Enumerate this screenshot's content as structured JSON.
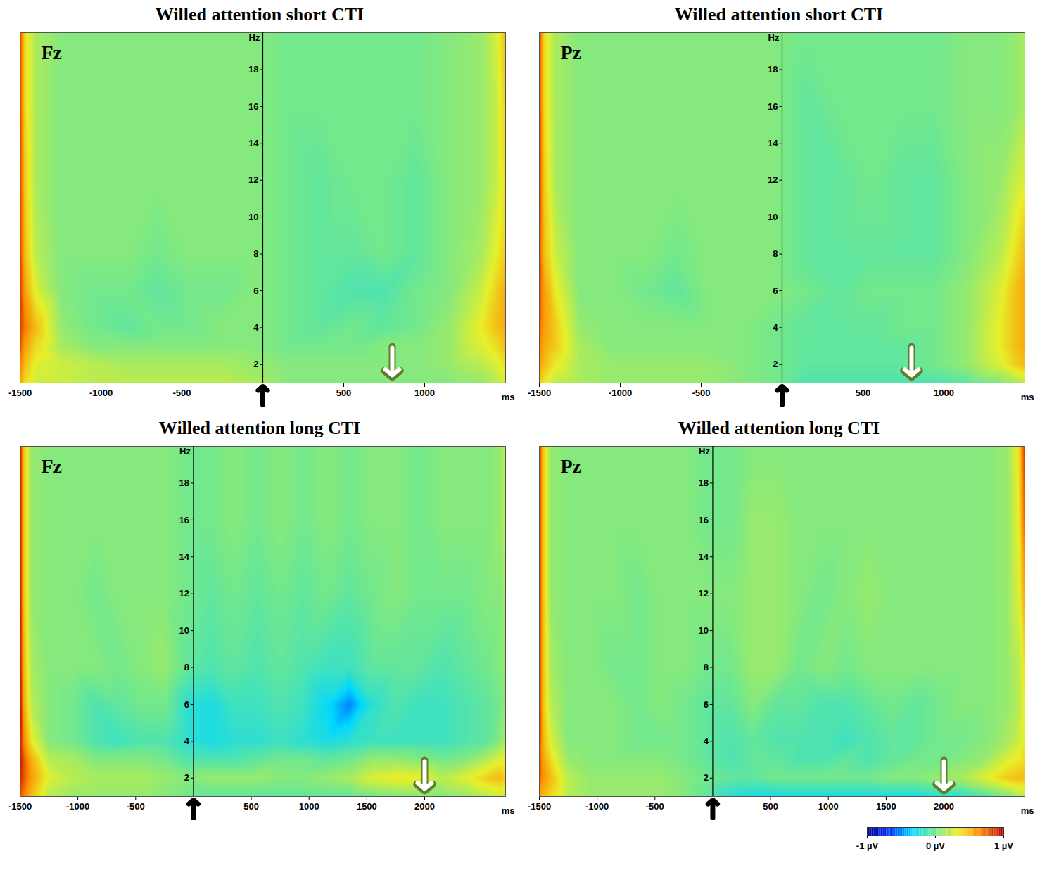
{
  "chart_data": [
    {
      "type": "heatmap",
      "title": "Willed attention short CTI",
      "panel_label": "Fz",
      "xlabel": "ms",
      "ylabel": "Hz",
      "xlim": [
        -1500,
        1500
      ],
      "xticks": [
        -1500,
        -1000,
        -500,
        500,
        1000
      ],
      "ylim": [
        1,
        20
      ],
      "yticks": [
        2,
        4,
        6,
        8,
        10,
        12,
        14,
        16,
        18
      ],
      "arrows": [
        {
          "x": 0,
          "color": "black"
        },
        {
          "x": 800,
          "color": "white"
        }
      ],
      "x": [
        -1500,
        -1470,
        -1400,
        -1250,
        -1050,
        -850,
        -650,
        -450,
        -250,
        -50,
        150,
        350,
        550,
        750,
        950,
        1150,
        1350,
        1450,
        1500
      ],
      "y": [
        1,
        2,
        3,
        4,
        6,
        8,
        12,
        16,
        20
      ],
      "z": [
        [
          0.6,
          0.4,
          0.25,
          0.25,
          0.2,
          0.2,
          0.2,
          0.2,
          0.2,
          0.15,
          0.05,
          0.05,
          0.05,
          0.05,
          0.05,
          0.05,
          0.1,
          0.2,
          0.3
        ],
        [
          0.7,
          0.5,
          0.3,
          0.25,
          0.2,
          0.15,
          0.15,
          0.15,
          0.15,
          0.1,
          0.05,
          0.05,
          0.05,
          0.05,
          0.05,
          0.1,
          0.2,
          0.3,
          0.4
        ],
        [
          0.8,
          0.6,
          0.4,
          0.15,
          0.05,
          0.05,
          0.05,
          0.05,
          0.05,
          0.05,
          0,
          0,
          0,
          0.05,
          0.05,
          0.1,
          0.3,
          0.4,
          0.5
        ],
        [
          0.85,
          0.7,
          0.5,
          0.1,
          0,
          -0.05,
          0,
          0,
          0.05,
          0.05,
          0,
          -0.05,
          0,
          -0.05,
          0,
          0.1,
          0.35,
          0.5,
          0.55
        ],
        [
          0.85,
          0.6,
          0.3,
          0.05,
          0,
          0,
          -0.05,
          0,
          0,
          0.05,
          0,
          -0.05,
          -0.1,
          -0.1,
          0,
          0.05,
          0.25,
          0.45,
          0.55
        ],
        [
          0.85,
          0.5,
          0.2,
          0.05,
          0.05,
          0.05,
          0,
          0.05,
          0.05,
          0.05,
          0,
          -0.05,
          -0.05,
          0,
          -0.05,
          0.05,
          0.15,
          0.35,
          0.45
        ],
        [
          0.85,
          0.45,
          0.15,
          0.05,
          0.05,
          0.05,
          0.05,
          0.05,
          0.05,
          0.05,
          0,
          -0.05,
          0,
          0,
          -0.05,
          0.05,
          0.1,
          0.25,
          0.4
        ],
        [
          0.85,
          0.4,
          0.15,
          0.05,
          0.05,
          0.05,
          0.05,
          0.05,
          0.05,
          0.05,
          0,
          0,
          0,
          0,
          0,
          0.05,
          0.1,
          0.25,
          0.45
        ],
        [
          0.85,
          0.4,
          0.15,
          0.05,
          0.05,
          0.05,
          0.05,
          0.05,
          0.05,
          0.05,
          0,
          0,
          0,
          0,
          0,
          0.05,
          0.1,
          0.3,
          0.5
        ]
      ]
    },
    {
      "type": "heatmap",
      "title": "Willed attention short CTI",
      "panel_label": "Pz",
      "xlabel": "ms",
      "ylabel": "Hz",
      "xlim": [
        -1500,
        1500
      ],
      "xticks": [
        -1500,
        -1000,
        -500,
        500,
        1000
      ],
      "ylim": [
        1,
        20
      ],
      "yticks": [
        2,
        4,
        6,
        8,
        10,
        12,
        14,
        16,
        18
      ],
      "arrows": [
        {
          "x": 0,
          "color": "black"
        },
        {
          "x": 800,
          "color": "white"
        }
      ],
      "x": [
        -1500,
        -1470,
        -1400,
        -1250,
        -1050,
        -850,
        -650,
        -450,
        -250,
        -50,
        150,
        350,
        550,
        750,
        950,
        1150,
        1350,
        1450,
        1500
      ],
      "y": [
        1,
        2,
        3,
        4,
        6,
        8,
        12,
        16,
        20
      ],
      "z": [
        [
          0.5,
          0.35,
          0.2,
          0.15,
          0.1,
          0.1,
          0.1,
          0.1,
          0.05,
          0,
          -0.1,
          -0.1,
          -0.1,
          -0.1,
          -0.1,
          -0.05,
          0.05,
          0.15,
          0.2
        ],
        [
          0.6,
          0.5,
          0.35,
          0.15,
          0.1,
          0.1,
          0.1,
          0.1,
          0.05,
          0,
          -0.05,
          -0.05,
          -0.05,
          -0.05,
          0,
          0.1,
          0.3,
          0.45,
          0.5
        ],
        [
          0.7,
          0.55,
          0.45,
          0.15,
          0.05,
          0.05,
          0.05,
          0.05,
          0.05,
          0,
          -0.05,
          -0.05,
          -0.05,
          -0.05,
          0,
          0.1,
          0.35,
          0.5,
          0.55
        ],
        [
          0.75,
          0.6,
          0.45,
          0.1,
          0.05,
          0.05,
          0.05,
          0.05,
          0.05,
          0,
          -0.05,
          -0.05,
          -0.05,
          0,
          0,
          0.1,
          0.35,
          0.5,
          0.55
        ],
        [
          0.8,
          0.6,
          0.35,
          0.05,
          0.05,
          0,
          -0.05,
          0.05,
          0.05,
          0.05,
          0,
          -0.05,
          0,
          0,
          0,
          0.1,
          0.3,
          0.5,
          0.55
        ],
        [
          0.8,
          0.5,
          0.25,
          0.05,
          0.05,
          0.05,
          0,
          0.05,
          0.05,
          0.05,
          -0.05,
          -0.05,
          -0.05,
          -0.05,
          -0.05,
          0.05,
          0.2,
          0.4,
          0.5
        ],
        [
          0.85,
          0.45,
          0.15,
          0.05,
          0.05,
          0.05,
          0.05,
          0.05,
          0.05,
          0.05,
          -0.05,
          -0.05,
          0,
          -0.05,
          -0.05,
          0.05,
          0.1,
          0.25,
          0.3
        ],
        [
          0.85,
          0.4,
          0.15,
          0.05,
          0.05,
          0.05,
          0.05,
          0.05,
          0.05,
          0.05,
          -0.05,
          0,
          0,
          0,
          0,
          0.05,
          0.05,
          0.1,
          0.15
        ],
        [
          0.85,
          0.4,
          0.15,
          0.05,
          0.05,
          0.05,
          0.05,
          0.05,
          0.05,
          0.05,
          0,
          0,
          0,
          0,
          0,
          0.05,
          0.05,
          0.1,
          0.15
        ]
      ]
    },
    {
      "type": "heatmap",
      "title": "Willed attention long CTI",
      "panel_label": "Fz",
      "xlabel": "ms",
      "ylabel": "Hz",
      "xlim": [
        -1500,
        2700
      ],
      "xticks": [
        -1500,
        -1000,
        -500,
        500,
        1000,
        1500,
        2000
      ],
      "ylim": [
        1,
        20
      ],
      "yticks": [
        2,
        4,
        6,
        8,
        10,
        12,
        14,
        16,
        18
      ],
      "arrows": [
        {
          "x": 0,
          "color": "black"
        },
        {
          "x": 2000,
          "color": "white"
        }
      ],
      "x": [
        -1500,
        -1470,
        -1400,
        -1250,
        -1050,
        -850,
        -650,
        -450,
        -250,
        -50,
        150,
        350,
        550,
        750,
        950,
        1150,
        1350,
        1550,
        1750,
        1950,
        2150,
        2350,
        2550,
        2650,
        2700
      ],
      "y": [
        1,
        2,
        3,
        4,
        6,
        8,
        12,
        16,
        20
      ],
      "z": [
        [
          0.8,
          0.7,
          0.5,
          0.2,
          0.1,
          0.1,
          0.1,
          0.1,
          0.05,
          0,
          -0.05,
          -0.05,
          -0.05,
          -0.05,
          -0.05,
          -0.05,
          -0.05,
          0,
          0.05,
          0.05,
          0.05,
          0.1,
          0.2,
          0.25,
          0.25
        ],
        [
          0.9,
          0.8,
          0.6,
          0.3,
          0.2,
          0.15,
          0.15,
          0.15,
          0.1,
          0.05,
          0.1,
          0.1,
          0.1,
          0.05,
          0.05,
          0.1,
          0.15,
          0.3,
          0.35,
          0.35,
          0.2,
          0.3,
          0.45,
          0.5,
          0.45
        ],
        [
          0.95,
          0.8,
          0.55,
          0.2,
          0.15,
          0.05,
          0.05,
          0.05,
          0,
          -0.1,
          -0.1,
          -0.1,
          -0.05,
          0,
          0,
          -0.05,
          0,
          0.1,
          0.1,
          0.05,
          0,
          0.05,
          0.2,
          0.3,
          0.35
        ],
        [
          0.95,
          0.7,
          0.35,
          0.05,
          0,
          -0.1,
          -0.15,
          -0.1,
          -0.1,
          -0.2,
          -0.25,
          -0.2,
          -0.2,
          -0.15,
          -0.2,
          -0.25,
          -0.2,
          -0.15,
          -0.15,
          -0.15,
          -0.15,
          -0.1,
          -0.05,
          0.05,
          0.15
        ],
        [
          1,
          0.6,
          0.2,
          0.05,
          0,
          -0.1,
          -0.05,
          0,
          0,
          -0.2,
          -0.25,
          -0.15,
          -0.15,
          -0.1,
          -0.15,
          -0.3,
          -0.5,
          -0.2,
          -0.1,
          -0.15,
          -0.15,
          -0.1,
          -0.05,
          0,
          0.1
        ],
        [
          1,
          0.55,
          0.15,
          0.05,
          0.05,
          0.05,
          0,
          0.05,
          0.1,
          -0.05,
          -0.1,
          -0.05,
          -0.1,
          -0.05,
          -0.1,
          -0.15,
          -0.15,
          -0.05,
          -0.05,
          -0.05,
          -0.1,
          -0.05,
          0,
          0.05,
          0.1
        ],
        [
          1,
          0.5,
          0.1,
          0.05,
          0.05,
          0,
          0.05,
          0.05,
          0.05,
          0,
          -0.05,
          0,
          -0.05,
          0,
          -0.05,
          0,
          -0.05,
          0,
          0.05,
          0,
          0,
          0,
          0.05,
          0.05,
          0.15
        ],
        [
          1,
          0.5,
          0.1,
          0.05,
          0.05,
          0.05,
          0.05,
          0.05,
          0.05,
          0,
          0,
          0.05,
          0,
          0.05,
          0,
          0.05,
          0,
          0.05,
          0.05,
          0,
          0.05,
          0.05,
          0.05,
          0.1,
          0.2
        ],
        [
          1,
          0.5,
          0.1,
          0.05,
          0.05,
          0.05,
          0.05,
          0.05,
          0.05,
          0,
          0,
          0.05,
          0,
          0.05,
          0,
          0.05,
          0,
          0.05,
          0.05,
          0,
          0.05,
          0.05,
          0.05,
          0.1,
          0.2
        ]
      ]
    },
    {
      "type": "heatmap",
      "title": "Willed attention long CTI",
      "panel_label": "Pz",
      "xlabel": "ms",
      "ylabel": "Hz",
      "xlim": [
        -1500,
        2700
      ],
      "xticks": [
        -1500,
        -1000,
        -500,
        500,
        1000,
        1500,
        2000
      ],
      "ylim": [
        1,
        20
      ],
      "yticks": [
        2,
        4,
        6,
        8,
        10,
        12,
        14,
        16,
        18
      ],
      "arrows": [
        {
          "x": 0,
          "color": "black"
        },
        {
          "x": 2000,
          "color": "white"
        }
      ],
      "x": [
        -1500,
        -1470,
        -1400,
        -1250,
        -1050,
        -850,
        -650,
        -450,
        -250,
        -50,
        150,
        350,
        550,
        750,
        950,
        1150,
        1350,
        1550,
        1750,
        1950,
        2150,
        2350,
        2550,
        2650,
        2700
      ],
      "y": [
        1,
        2,
        3,
        4,
        6,
        8,
        12,
        16,
        20
      ],
      "z": [
        [
          0.6,
          0.5,
          0.4,
          0.2,
          0.1,
          0.1,
          0.1,
          0.1,
          0.05,
          -0.05,
          -0.2,
          -0.25,
          -0.25,
          -0.25,
          -0.25,
          -0.25,
          -0.25,
          -0.25,
          -0.25,
          -0.2,
          -0.2,
          -0.1,
          0.05,
          0.15,
          0.2
        ],
        [
          0.75,
          0.65,
          0.5,
          0.2,
          0.1,
          0.1,
          0.1,
          0.1,
          0.05,
          0,
          -0.05,
          -0.05,
          0,
          0,
          0,
          0,
          0,
          0.05,
          0.05,
          0.1,
          0.15,
          0.3,
          0.45,
          0.5,
          0.5
        ],
        [
          0.8,
          0.6,
          0.4,
          0.1,
          0.05,
          0.05,
          0.05,
          0.05,
          0,
          -0.05,
          -0.1,
          -0.05,
          -0.05,
          -0.1,
          -0.1,
          -0.05,
          -0.1,
          -0.05,
          0,
          0,
          0.05,
          0.1,
          0.3,
          0.35,
          0.4
        ],
        [
          0.85,
          0.55,
          0.3,
          0.05,
          0.05,
          0.05,
          0,
          0,
          0,
          -0.05,
          -0.1,
          -0.05,
          -0.1,
          -0.1,
          -0.1,
          -0.15,
          -0.1,
          -0.05,
          -0.05,
          0,
          0,
          0.05,
          0.15,
          0.25,
          0.35
        ],
        [
          0.9,
          0.5,
          0.2,
          0.05,
          0.05,
          0.05,
          0,
          0.05,
          0,
          -0.05,
          -0.05,
          0.05,
          -0.05,
          -0.05,
          -0.1,
          -0.1,
          -0.05,
          0,
          -0.05,
          0,
          0.05,
          0.05,
          0.1,
          0.2,
          0.35
        ],
        [
          0.9,
          0.5,
          0.15,
          0.05,
          0.05,
          0,
          0,
          0.05,
          0.05,
          0,
          0,
          0.1,
          0.1,
          0,
          0.05,
          0,
          0.05,
          0.05,
          0.05,
          0.05,
          0.05,
          0.05,
          0.1,
          0.2,
          0.4
        ],
        [
          0.9,
          0.5,
          0.1,
          0.05,
          0.05,
          0.05,
          0,
          0.05,
          0.05,
          0.05,
          0.05,
          0.1,
          0.1,
          0.05,
          0,
          0.05,
          0.1,
          0.05,
          0.05,
          0.05,
          0.05,
          0.05,
          0.1,
          0.3,
          0.6
        ],
        [
          0.9,
          0.5,
          0.1,
          0.05,
          0.05,
          0.05,
          0.05,
          0.05,
          0.05,
          0,
          0,
          0.1,
          0.1,
          0.05,
          0.05,
          0.05,
          0.05,
          0.05,
          0.05,
          0.05,
          0.05,
          0.05,
          0.1,
          0.35,
          0.8
        ],
        [
          0.9,
          0.5,
          0.1,
          0.05,
          0.05,
          0.05,
          0.05,
          0.05,
          0.05,
          0,
          0,
          0.05,
          0.05,
          0.05,
          0.05,
          0.05,
          0.05,
          0.05,
          0.05,
          0.05,
          0.05,
          0.05,
          0.1,
          0.4,
          0.9
        ]
      ]
    }
  ],
  "colorbar": {
    "range": [
      -1,
      1
    ],
    "ticks": [
      {
        "value": -1,
        "label": "-1 µV"
      },
      {
        "value": 0,
        "label": "0 µV"
      },
      {
        "value": 1,
        "label": "1 µV"
      }
    ]
  }
}
